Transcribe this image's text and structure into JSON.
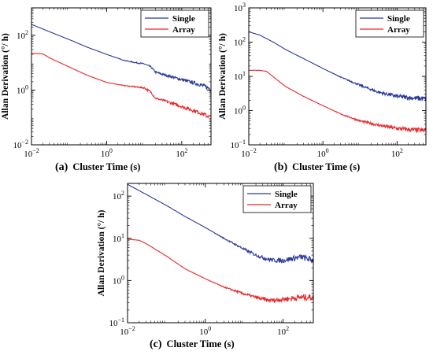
{
  "chart_data": [
    {
      "type": "line",
      "panel_label": "(a)",
      "xlabel": "Cluster Time (s)",
      "ylabel": "Allan Derivation (°/ h)",
      "xscale": "log",
      "yscale": "log",
      "xlim": [
        0.01,
        600
      ],
      "ylim": [
        0.01,
        1000
      ],
      "x_ticks": [
        0.01,
        1,
        100
      ],
      "x_tick_labels": [
        {
          "base": "10",
          "exp": "−2"
        },
        {
          "base": "10",
          "exp": "0"
        },
        {
          "base": "10",
          "exp": "2"
        }
      ],
      "y_ticks": [
        0.01,
        1,
        100
      ],
      "y_tick_labels": [
        {
          "base": "10",
          "exp": "−2"
        },
        {
          "base": "10",
          "exp": "0"
        },
        {
          "base": "10",
          "exp": "2"
        }
      ],
      "legend": "top-right",
      "grid": false,
      "series": [
        {
          "name": "Single",
          "color": "#2b3a9c",
          "x": [
            0.01,
            0.03,
            0.1,
            0.3,
            1,
            3,
            6,
            10,
            15,
            20,
            40,
            100,
            300,
            600
          ],
          "y": [
            250,
            135,
            70,
            37,
            20,
            12,
            10,
            9,
            7,
            4.5,
            3.4,
            2.4,
            1.6,
            1.1
          ]
        },
        {
          "name": "Array",
          "color": "#e8272a",
          "x": [
            0.01,
            0.02,
            0.03,
            0.1,
            0.3,
            1,
            3,
            6,
            10,
            15,
            20,
            40,
            100,
            300,
            600
          ],
          "y": [
            22,
            21,
            15,
            7,
            3.5,
            1.9,
            1.45,
            1.3,
            1.2,
            0.85,
            0.5,
            0.38,
            0.25,
            0.15,
            0.1
          ]
        }
      ]
    },
    {
      "type": "line",
      "panel_label": "(b)",
      "xlabel": "Cluster Time (s)",
      "ylabel": "Allan Derivation (°/ h)",
      "xscale": "log",
      "yscale": "log",
      "xlim": [
        0.01,
        600
      ],
      "ylim": [
        0.1,
        1000
      ],
      "x_ticks": [
        0.01,
        1,
        100
      ],
      "x_tick_labels": [
        {
          "base": "10",
          "exp": "−2"
        },
        {
          "base": "10",
          "exp": "0"
        },
        {
          "base": "10",
          "exp": "2"
        }
      ],
      "y_ticks": [
        0.1,
        1,
        10,
        100,
        1000
      ],
      "y_tick_labels": [
        {
          "base": "10",
          "exp": "−1"
        },
        {
          "base": "10",
          "exp": "0"
        },
        {
          "base": "10",
          "exp": "1"
        },
        {
          "base": "10",
          "exp": "2"
        },
        {
          "base": "10",
          "exp": "3"
        }
      ],
      "legend": "top-right",
      "grid": false,
      "series": [
        {
          "name": "Single",
          "color": "#2b3a9c",
          "x": [
            0.01,
            0.02,
            0.05,
            0.1,
            0.3,
            1,
            3,
            10,
            30,
            100,
            300,
            600
          ],
          "y": [
            200,
            160,
            95,
            60,
            33,
            17,
            9.5,
            5.5,
            3.5,
            2.6,
            2.3,
            2.2
          ]
        },
        {
          "name": "Array",
          "color": "#e8272a",
          "x": [
            0.01,
            0.02,
            0.03,
            0.05,
            0.1,
            0.3,
            1,
            3,
            10,
            30,
            100,
            300,
            600
          ],
          "y": [
            15,
            15,
            14,
            9,
            5,
            2.6,
            1.4,
            0.8,
            0.5,
            0.38,
            0.3,
            0.27,
            0.26
          ]
        }
      ]
    },
    {
      "type": "line",
      "panel_label": "(c)",
      "xlabel": "Cluster Time (s)",
      "ylabel": "Allan Derivation (°/ h)",
      "xscale": "log",
      "yscale": "log",
      "xlim": [
        0.01,
        600
      ],
      "ylim": [
        0.1,
        200
      ],
      "x_ticks": [
        0.01,
        1,
        100
      ],
      "x_tick_labels": [
        {
          "base": "10",
          "exp": "−2"
        },
        {
          "base": "10",
          "exp": "0"
        },
        {
          "base": "10",
          "exp": "2"
        }
      ],
      "y_ticks": [
        0.1,
        1,
        10,
        100
      ],
      "y_tick_labels": [
        {
          "base": "10",
          "exp": "−1"
        },
        {
          "base": "10",
          "exp": "0"
        },
        {
          "base": "10",
          "exp": "1"
        },
        {
          "base": "10",
          "exp": "2"
        }
      ],
      "legend": "top-right",
      "grid": false,
      "series": [
        {
          "name": "Single",
          "color": "#2b3a9c",
          "x": [
            0.01,
            0.03,
            0.1,
            0.3,
            1,
            3,
            10,
            20,
            40,
            60,
            100,
            200,
            300,
            600
          ],
          "y": [
            190,
            110,
            60,
            33,
            18,
            10,
            5.5,
            4,
            3.2,
            3,
            3,
            3.4,
            3.6,
            3
          ]
        },
        {
          "name": "Array",
          "color": "#e8272a",
          "x": [
            0.01,
            0.02,
            0.03,
            0.1,
            0.3,
            1,
            3,
            10,
            20,
            40,
            60,
            100,
            300,
            600
          ],
          "y": [
            9.5,
            9,
            7.5,
            3.8,
            1.9,
            1.1,
            0.7,
            0.48,
            0.4,
            0.34,
            0.34,
            0.36,
            0.4,
            0.4
          ]
        }
      ]
    }
  ]
}
